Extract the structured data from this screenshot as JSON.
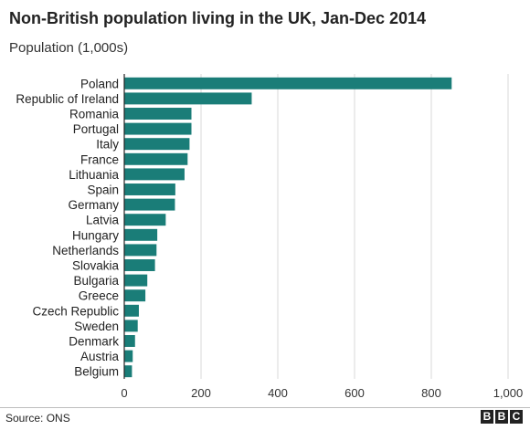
{
  "chart_data": {
    "type": "bar",
    "orientation": "horizontal",
    "title": "Non-British population living in the UK, Jan-Dec 2014",
    "subtitle": "Population (1,000s)",
    "categories": [
      "Poland",
      "Republic of Ireland",
      "Romania",
      "Portugal",
      "Italy",
      "France",
      "Lithuania",
      "Spain",
      "Germany",
      "Latvia",
      "Hungary",
      "Netherlands",
      "Slovakia",
      "Bulgaria",
      "Greece",
      "Czech Republic",
      "Sweden",
      "Denmark",
      "Austria",
      "Belgium"
    ],
    "values": [
      853,
      332,
      175,
      175,
      170,
      165,
      157,
      133,
      132,
      108,
      86,
      84,
      80,
      60,
      55,
      38,
      35,
      28,
      22,
      20
    ],
    "xlim": [
      0,
      1000
    ],
    "xticks": [
      0,
      200,
      400,
      600,
      800,
      1000
    ],
    "xtick_labels": [
      "0",
      "200",
      "400",
      "600",
      "800",
      "1,000"
    ],
    "grid": "vertical",
    "bar_color": "#1a7d78"
  },
  "footer": {
    "source": "Source: ONS",
    "logo_letters": [
      "B",
      "B",
      "C"
    ]
  }
}
